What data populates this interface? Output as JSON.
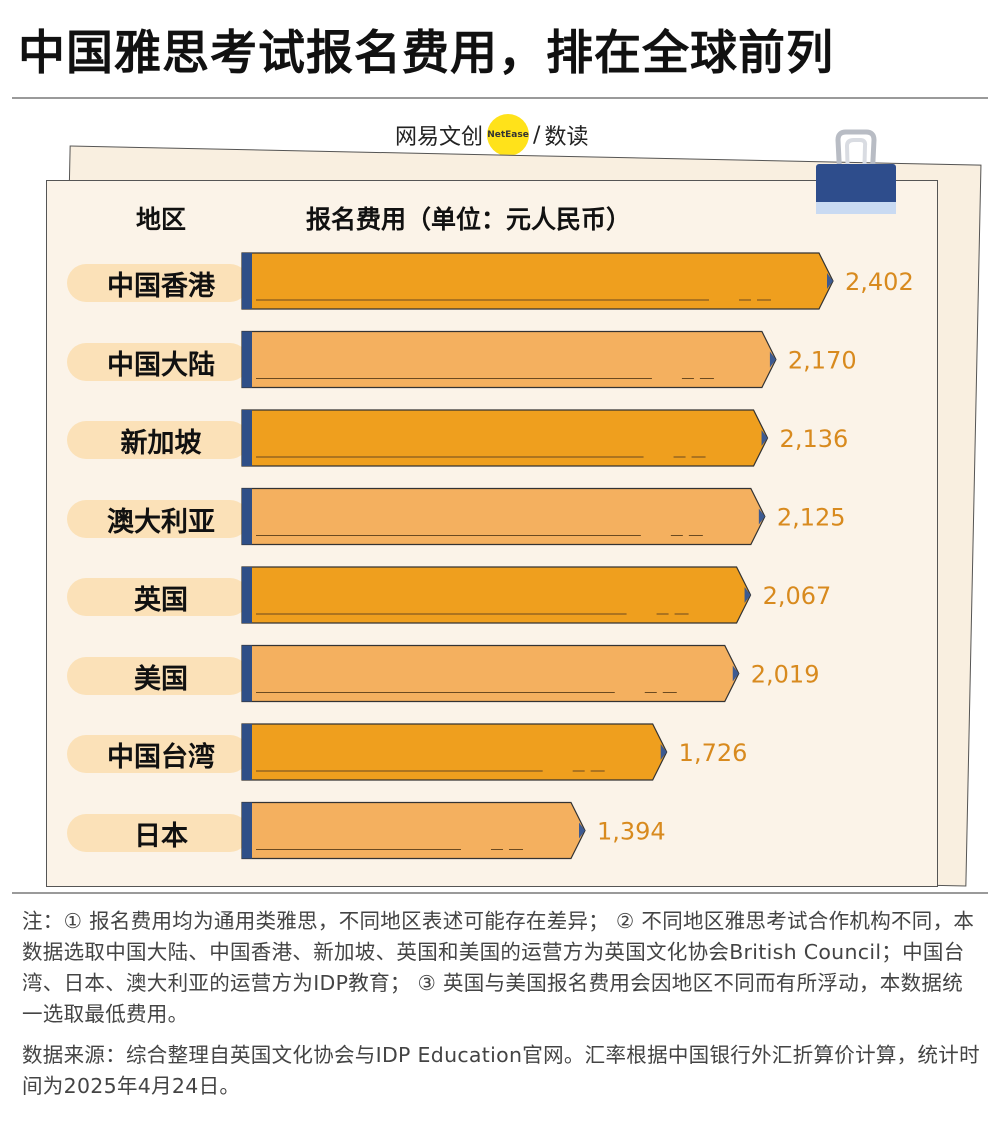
{
  "title": "中国雅思考试报名费用，排在全球前列",
  "brand": {
    "left": "网易文创",
    "dot": "NetEase",
    "sep": "/",
    "right": "数读"
  },
  "colors": {
    "bar_dark": "#ef9f1e",
    "bar_light": "#f4b05f",
    "bar_edge": "#2f4f87",
    "tip": "#3c5a92",
    "value_text": "#d88a1e",
    "label_bg": "#fbe1b8",
    "paper": "#fbf3e8"
  },
  "chart_data": {
    "type": "bar",
    "orientation": "horizontal",
    "title": "中国雅思考试报名费用，排在全球前列",
    "xlabel": "报名费用（单位：元人民币）",
    "ylabel": "地区",
    "categories": [
      "中国香港",
      "中国大陆",
      "新加坡",
      "澳大利亚",
      "英国",
      "美国",
      "中国台湾",
      "日本"
    ],
    "values": [
      2402,
      2170,
      2136,
      2125,
      2067,
      2019,
      1726,
      1394
    ],
    "value_labels": [
      "2,402",
      "2,170",
      "2,136",
      "2,125",
      "2,067",
      "2,019",
      "1,726",
      "1,394"
    ],
    "xlim": [
      0,
      2402
    ],
    "grid": false,
    "legend": "none"
  },
  "notes": {
    "note": "注：① 报名费用均为通用类雅思，不同地区表述可能存在差异； ② 不同地区雅思考试合作机构不同，本数据选取中国大陆、中国香港、新加坡、英国和美国的运营方为英国文化协会British Council；中国台湾、日本、澳大利亚的运营方为IDP教育； ③ 英国与美国报名费用会因地区不同而有所浮动，本数据统一选取最低费用。",
    "source": "数据来源：综合整理自英国文化协会与IDP Education官网。汇率根据中国银行外汇折算价计算，统计时间为2025年4月24日。"
  }
}
